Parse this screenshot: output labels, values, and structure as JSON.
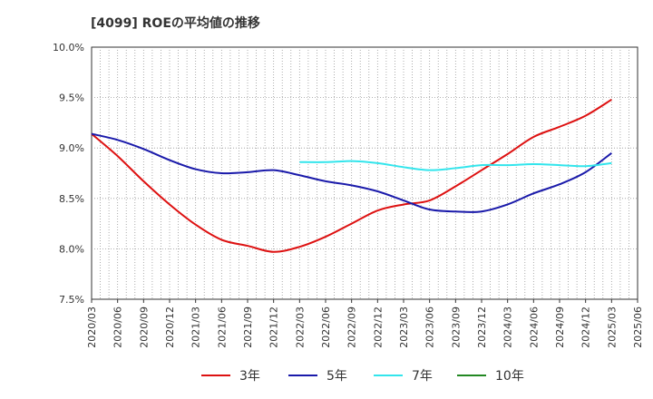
{
  "chart_data": {
    "type": "line",
    "title": "[4099]  ROEの平均値の推移",
    "xlabel": "",
    "ylabel": "",
    "ylim": [
      7.5,
      10.0
    ],
    "yticks": [
      7.5,
      8.0,
      8.5,
      9.0,
      9.5,
      10.0
    ],
    "ytick_labels": [
      "7.5%",
      "8.0%",
      "8.5%",
      "9.0%",
      "9.5%",
      "10.0%"
    ],
    "x": [
      "2020/03",
      "2020/06",
      "2020/09",
      "2020/12",
      "2021/03",
      "2021/06",
      "2021/09",
      "2021/12",
      "2022/03",
      "2022/06",
      "2022/09",
      "2022/12",
      "2023/03",
      "2023/06",
      "2023/09",
      "2023/12",
      "2024/03",
      "2024/06",
      "2024/09",
      "2024/12",
      "2025/03",
      "2025/06"
    ],
    "grid": true,
    "legend_position": "bottom",
    "series": [
      {
        "name": "3年",
        "color": "#dd1111",
        "values": [
          9.14,
          8.92,
          8.67,
          8.44,
          8.24,
          8.09,
          8.03,
          7.97,
          8.02,
          8.12,
          8.25,
          8.38,
          8.44,
          8.48,
          8.62,
          8.78,
          8.94,
          9.11,
          9.21,
          9.32,
          9.48,
          null
        ]
      },
      {
        "name": "5年",
        "color": "#1a1aaa",
        "values": [
          9.14,
          9.08,
          8.99,
          8.88,
          8.79,
          8.75,
          8.76,
          8.78,
          8.73,
          8.67,
          8.63,
          8.57,
          8.48,
          8.39,
          8.37,
          8.37,
          8.44,
          8.55,
          8.64,
          8.76,
          8.95,
          null
        ]
      },
      {
        "name": "7年",
        "color": "#33e5ec",
        "values": [
          null,
          null,
          null,
          null,
          null,
          null,
          null,
          null,
          8.86,
          8.86,
          8.87,
          8.85,
          8.81,
          8.78,
          8.8,
          8.83,
          8.83,
          8.84,
          8.83,
          8.82,
          8.85,
          null
        ]
      },
      {
        "name": "10年",
        "color": "#228822",
        "values": [
          null,
          null,
          null,
          null,
          null,
          null,
          null,
          null,
          null,
          null,
          null,
          null,
          null,
          null,
          null,
          null,
          null,
          null,
          null,
          null,
          null,
          null
        ]
      }
    ]
  }
}
